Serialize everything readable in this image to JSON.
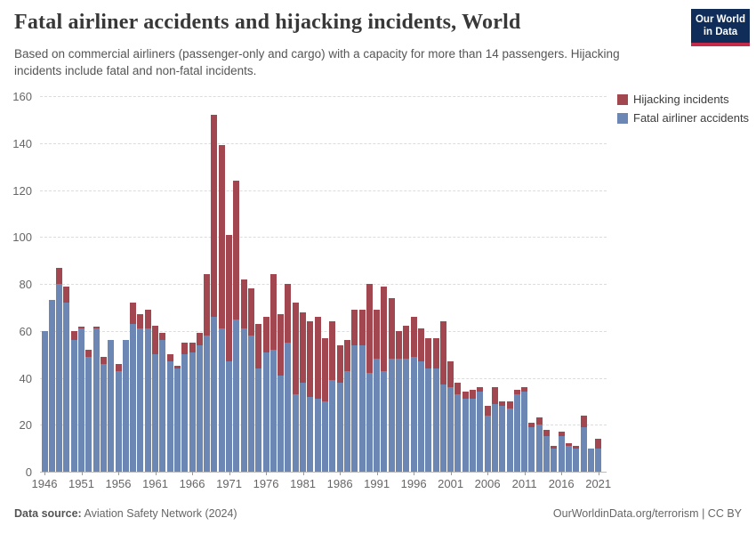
{
  "header": {
    "title": "Fatal airliner accidents and hijacking incidents, World",
    "subtitle": "Based on commercial airliners (passenger-only and cargo) with a capacity for more than 14 passengers. Hijacking incidents include fatal and non-fatal incidents."
  },
  "logo": {
    "line1": "Our World",
    "line2": "in Data",
    "bg_color": "#102d59",
    "accent_color": "#c32b49"
  },
  "legend": {
    "items": [
      {
        "label": "Hijacking incidents",
        "color": "#a2464f"
      },
      {
        "label": "Fatal airliner accidents",
        "color": "#6c87b4"
      }
    ]
  },
  "footer": {
    "source_label": "Data source:",
    "source_value": " Aviation Safety Network (2024)",
    "right_text": "OurWorldinData.org/terrorism | CC BY"
  },
  "chart_data": {
    "type": "bar",
    "stacked": true,
    "title": "Fatal airliner accidents and hijacking incidents, World",
    "xlabel": "",
    "ylabel": "",
    "ylim": [
      0,
      160
    ],
    "y_ticks": [
      0,
      20,
      40,
      60,
      80,
      100,
      120,
      140,
      160
    ],
    "grid": "horizontal-dashed",
    "legend_position": "top-right",
    "x": [
      1946,
      1947,
      1948,
      1949,
      1950,
      1951,
      1952,
      1953,
      1954,
      1955,
      1956,
      1957,
      1958,
      1959,
      1960,
      1961,
      1962,
      1963,
      1964,
      1965,
      1966,
      1967,
      1968,
      1969,
      1970,
      1971,
      1972,
      1973,
      1974,
      1975,
      1976,
      1977,
      1978,
      1979,
      1980,
      1981,
      1982,
      1983,
      1984,
      1985,
      1986,
      1987,
      1988,
      1989,
      1990,
      1991,
      1992,
      1993,
      1994,
      1995,
      1996,
      1997,
      1998,
      1999,
      2000,
      2001,
      2002,
      2003,
      2004,
      2005,
      2006,
      2007,
      2008,
      2009,
      2010,
      2011,
      2012,
      2013,
      2014,
      2015,
      2016,
      2017,
      2018,
      2019,
      2020,
      2021
    ],
    "x_tick_labels": [
      1946,
      1951,
      1956,
      1961,
      1966,
      1971,
      1976,
      1981,
      1986,
      1991,
      1996,
      2001,
      2006,
      2011,
      2016,
      2021
    ],
    "series": [
      {
        "name": "Fatal airliner accidents",
        "color": "#6c87b4",
        "values": [
          60,
          73,
          80,
          72,
          56,
          61,
          49,
          61,
          46,
          56,
          43,
          56,
          63,
          61,
          61,
          50,
          56,
          47,
          44,
          50,
          51,
          54,
          58,
          66,
          61,
          47,
          65,
          61,
          58,
          44,
          51,
          52,
          41,
          55,
          33,
          38,
          32,
          31,
          30,
          39,
          38,
          43,
          54,
          54,
          42,
          48,
          43,
          48,
          48,
          48,
          49,
          47,
          44,
          44,
          37,
          36,
          33,
          31,
          31,
          34,
          24,
          29,
          28,
          27,
          33,
          34,
          19,
          20,
          15,
          10,
          15,
          11,
          10,
          19,
          10,
          10
        ]
      },
      {
        "name": "Hijacking incidents",
        "color": "#a2464f",
        "values": [
          0,
          0,
          7,
          7,
          4,
          1,
          3,
          1,
          3,
          0,
          3,
          0,
          9,
          6,
          8,
          12,
          3,
          3,
          1,
          5,
          4,
          5,
          26,
          86,
          78,
          54,
          59,
          21,
          20,
          19,
          15,
          32,
          26,
          25,
          39,
          30,
          32,
          35,
          27,
          25,
          16,
          13,
          15,
          15,
          38,
          21,
          36,
          26,
          12,
          14,
          17,
          14,
          13,
          13,
          27,
          11,
          5,
          3,
          4,
          2,
          4,
          7,
          2,
          3,
          2,
          2,
          2,
          3,
          3,
          1,
          2,
          1,
          1,
          5,
          0,
          4
        ]
      }
    ]
  }
}
